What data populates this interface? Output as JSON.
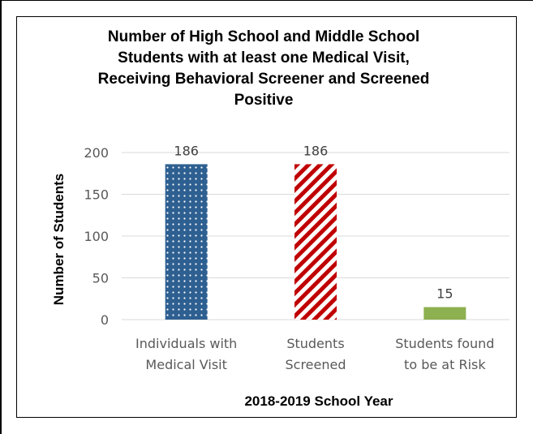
{
  "chart_data": {
    "type": "bar",
    "title_lines": [
      "Number of High School and Middle School",
      "Students with at least one Medical Visit,",
      "Receiving Behavioral Screener and Screened",
      "Positive"
    ],
    "categories": [
      [
        "Individuals with",
        "Medical Visit"
      ],
      [
        "Students",
        "Screened"
      ],
      [
        "Students found",
        "to be at Risk"
      ]
    ],
    "values": [
      186,
      186,
      15
    ],
    "data_labels": [
      "186",
      "186",
      "15"
    ],
    "xlabel": "2018-2019 School Year",
    "ylabel": "Number of Students",
    "ylim": [
      0,
      200
    ],
    "yticks": [
      0,
      50,
      100,
      150,
      200
    ],
    "grid": true,
    "bar_styles": [
      {
        "pattern": "white-dots",
        "color": "#2e5f91"
      },
      {
        "pattern": "diagonal-stripes",
        "color": "#c00000"
      },
      {
        "pattern": "solid",
        "color": "#8db050"
      }
    ]
  }
}
